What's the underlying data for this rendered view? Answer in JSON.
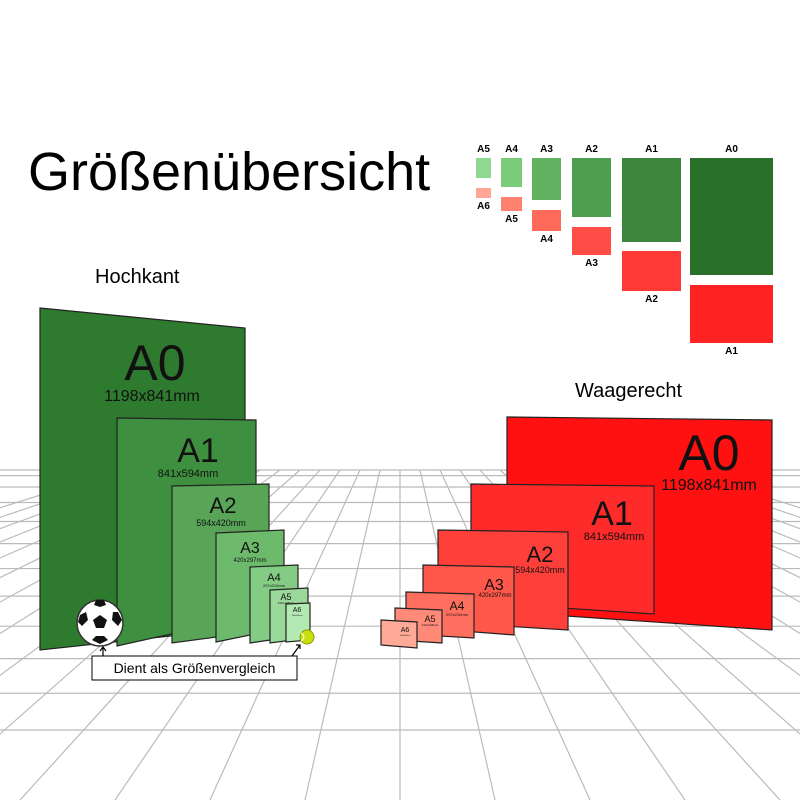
{
  "title": "Größenübersicht",
  "portrait_heading": "Hochkant",
  "landscape_heading": "Waagerecht",
  "comparison_caption": "Dient als Größenvergleich",
  "portrait": [
    {
      "label": "A0",
      "dims": "1198x841mm",
      "color": "#2e7a2e"
    },
    {
      "label": "A1",
      "dims": "841x594mm",
      "color": "#3f8f40"
    },
    {
      "label": "A2",
      "dims": "594x420mm",
      "color": "#58a558"
    },
    {
      "label": "A3",
      "dims": "420x297mm",
      "color": "#6dba6d"
    },
    {
      "label": "A4",
      "dims": "297x210mm",
      "color": "#84cb84"
    },
    {
      "label": "A5",
      "dims": "210x148mm",
      "color": "#9bd99b"
    },
    {
      "label": "A6",
      "dims": "148x105mm",
      "color": "#b3eab3"
    }
  ],
  "landscape": [
    {
      "label": "A0",
      "dims": "1198x841mm",
      "color": "#ff1111"
    },
    {
      "label": "A1",
      "dims": "841x594mm",
      "color": "#ff2a2a"
    },
    {
      "label": "A2",
      "dims": "594x420mm",
      "color": "#ff3f3a"
    },
    {
      "label": "A3",
      "dims": "420x297mm",
      "color": "#ff5749"
    },
    {
      "label": "A4",
      "dims": "297x210mm",
      "color": "#ff6f5f"
    },
    {
      "label": "A5",
      "dims": "210x148mm",
      "color": "#ff8a78"
    },
    {
      "label": "A6",
      "dims": "148x105mm",
      "color": "#ffaa98"
    }
  ],
  "legend": {
    "green": [
      {
        "label": "A5",
        "color": "#8fd88f"
      },
      {
        "label": "A4",
        "color": "#7acb7a"
      },
      {
        "label": "A3",
        "color": "#62b262"
      },
      {
        "label": "A2",
        "color": "#4f9e4f"
      },
      {
        "label": "A1",
        "color": "#3d853d"
      },
      {
        "label": "A0",
        "color": "#2a702a"
      }
    ],
    "red": [
      {
        "label": "A6",
        "color": "#ffa696"
      },
      {
        "label": "A5",
        "color": "#ff8270"
      },
      {
        "label": "A4",
        "color": "#ff6a5a"
      },
      {
        "label": "A3",
        "color": "#ff4d45"
      },
      {
        "label": "A2",
        "color": "#ff3a36"
      },
      {
        "label": "A1",
        "color": "#ff2222"
      }
    ]
  }
}
